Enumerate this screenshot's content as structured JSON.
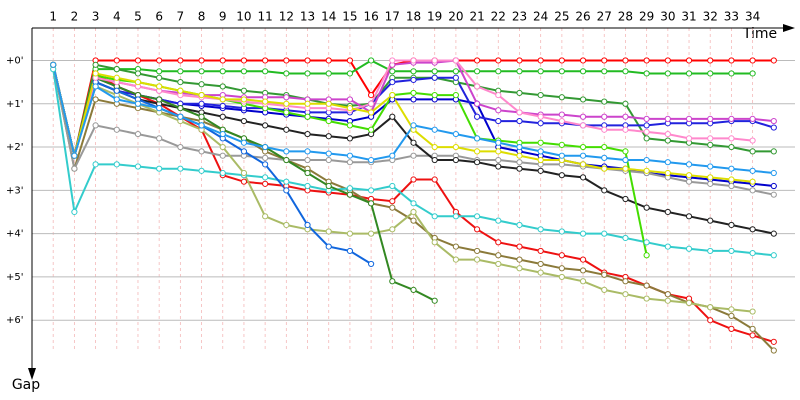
{
  "chart_data": {
    "type": "line",
    "x_label": "Time",
    "y_label": "Gap",
    "x": [
      1,
      2,
      3,
      4,
      5,
      6,
      7,
      8,
      9,
      10,
      11,
      12,
      13,
      14,
      15,
      16,
      17,
      18,
      19,
      20,
      21,
      22,
      23,
      24,
      25,
      26,
      27,
      28,
      29,
      30,
      31,
      32,
      33,
      34,
      35
    ],
    "xlim": [
      0,
      36
    ],
    "xticks": [
      1,
      2,
      3,
      4,
      5,
      6,
      7,
      8,
      9,
      10,
      11,
      12,
      13,
      14,
      15,
      16,
      17,
      18,
      19,
      20,
      21,
      22,
      23,
      24,
      25,
      26,
      27,
      28,
      29,
      30,
      31,
      32,
      33,
      34
    ],
    "ylim": [
      -0.75,
      7.15
    ],
    "yticks": [
      {
        "value": 0,
        "label": "+0'"
      },
      {
        "value": 1,
        "label": "+1'"
      },
      {
        "value": 2,
        "label": "+2'"
      },
      {
        "value": 3,
        "label": "+3'"
      },
      {
        "value": 4,
        "label": "+4'"
      },
      {
        "value": 5,
        "label": "+5'"
      },
      {
        "value": 6,
        "label": "+6'"
      }
    ],
    "grid": true,
    "series": [
      {
        "color": "#ff0000",
        "values": [
          0.1,
          2.2,
          0,
          0,
          0,
          0,
          0,
          0,
          0,
          0,
          0,
          0,
          0,
          0,
          0,
          0.8,
          0.1,
          0,
          0,
          0,
          0,
          0,
          0,
          0,
          0,
          0,
          0,
          0,
          0,
          0,
          0,
          0,
          0,
          0,
          0
        ]
      },
      {
        "color": "#22bb22",
        "values": [
          0.1,
          2.2,
          0.2,
          0.2,
          0.2,
          0.25,
          0.25,
          0.25,
          0.25,
          0.25,
          0.25,
          0.3,
          0.3,
          0.3,
          0.3,
          0,
          0.25,
          0.25,
          0.25,
          0.25,
          0.25,
          0.25,
          0.25,
          0.25,
          0.25,
          0.25,
          0.25,
          0.25,
          0.3,
          0.3,
          0.3,
          0.3,
          0.3,
          0.3,
          null
        ]
      },
      {
        "color": "#339933",
        "values": [
          0.1,
          2.2,
          0.1,
          0.2,
          0.3,
          0.4,
          0.5,
          0.55,
          0.6,
          0.7,
          0.75,
          0.8,
          0.9,
          1.0,
          1.05,
          1.0,
          0.4,
          0.4,
          0.4,
          0.5,
          0.6,
          0.7,
          0.75,
          0.8,
          0.85,
          0.9,
          0.95,
          1.0,
          1.8,
          1.85,
          1.9,
          1.95,
          2.0,
          2.1,
          2.1
        ]
      },
      {
        "color": "#0000cc",
        "values": [
          0.1,
          2.2,
          0.4,
          0.6,
          0.8,
          0.9,
          1.0,
          1.05,
          1.1,
          1.15,
          1.2,
          1.25,
          1.3,
          1.35,
          1.4,
          1.3,
          0.9,
          0.9,
          0.9,
          0.9,
          1.0,
          2.0,
          2.1,
          2.2,
          2.3,
          2.4,
          2.45,
          2.5,
          2.6,
          2.65,
          2.7,
          2.75,
          2.8,
          2.85,
          2.9
        ]
      },
      {
        "color": "#2222dd",
        "values": [
          0.1,
          2.2,
          0.5,
          0.7,
          0.8,
          0.9,
          1.0,
          1.0,
          1.05,
          1.1,
          1.1,
          1.15,
          1.2,
          1.2,
          1.2,
          1.0,
          0.5,
          0.45,
          0.4,
          0.4,
          1.3,
          1.4,
          1.4,
          1.45,
          1.45,
          1.5,
          1.5,
          1.5,
          1.5,
          1.45,
          1.45,
          1.45,
          1.4,
          1.4,
          1.55
        ]
      },
      {
        "color": "#cc44cc",
        "values": [
          0.1,
          2.2,
          0.4,
          0.5,
          0.6,
          0.7,
          0.75,
          0.8,
          0.8,
          0.85,
          0.85,
          0.85,
          0.9,
          0.9,
          0.9,
          1.2,
          0.1,
          0.05,
          0.05,
          0,
          1.0,
          1.15,
          1.2,
          1.25,
          1.25,
          1.3,
          1.3,
          1.3,
          1.35,
          1.35,
          1.35,
          1.35,
          1.35,
          1.35,
          1.4
        ]
      },
      {
        "color": "#ee1111",
        "values": [
          0.1,
          2.2,
          0.3,
          0.6,
          0.8,
          1.0,
          1.3,
          1.6,
          2.65,
          2.8,
          2.85,
          2.9,
          3.0,
          3.05,
          3.1,
          3.2,
          3.25,
          2.75,
          2.75,
          3.5,
          3.9,
          4.2,
          4.3,
          4.4,
          4.5,
          4.6,
          4.9,
          5.0,
          5.2,
          5.4,
          5.5,
          6.0,
          6.2,
          6.35,
          6.5
        ]
      },
      {
        "color": "#8b7a3a",
        "values": [
          0.1,
          2.5,
          0.9,
          1.0,
          1.1,
          1.2,
          1.3,
          1.4,
          1.6,
          1.8,
          2.1,
          2.3,
          2.5,
          2.8,
          3.0,
          3.3,
          3.4,
          3.7,
          4.1,
          4.3,
          4.4,
          4.5,
          4.6,
          4.7,
          4.8,
          4.85,
          4.95,
          5.1,
          5.2,
          5.4,
          5.6,
          5.7,
          5.9,
          6.2,
          6.7
        ]
      },
      {
        "color": "#33cccc",
        "values": [
          0.2,
          3.5,
          2.4,
          2.4,
          2.45,
          2.5,
          2.5,
          2.55,
          2.6,
          2.65,
          2.7,
          2.8,
          2.9,
          3.0,
          2.95,
          3.0,
          2.9,
          3.3,
          3.6,
          3.6,
          3.6,
          3.7,
          3.8,
          3.9,
          3.95,
          4.0,
          4.0,
          4.1,
          4.2,
          4.3,
          4.35,
          4.4,
          4.4,
          4.45,
          4.5
        ]
      },
      {
        "color": "#999999",
        "values": [
          0.1,
          2.5,
          1.5,
          1.6,
          1.7,
          1.8,
          2.0,
          2.1,
          2.2,
          2.2,
          2.25,
          2.3,
          2.3,
          2.3,
          2.35,
          2.35,
          2.3,
          2.2,
          2.2,
          2.2,
          2.3,
          2.3,
          2.35,
          2.4,
          2.4,
          2.45,
          2.5,
          2.55,
          2.6,
          2.7,
          2.8,
          2.85,
          2.9,
          3.0,
          3.1
        ]
      },
      {
        "color": "#222222",
        "values": [
          0.1,
          2.2,
          0.5,
          0.7,
          0.9,
          1.0,
          1.1,
          1.2,
          1.3,
          1.4,
          1.5,
          1.6,
          1.7,
          1.75,
          1.8,
          1.7,
          1.3,
          1.9,
          2.3,
          2.3,
          2.35,
          2.45,
          2.5,
          2.55,
          2.65,
          2.7,
          3.0,
          3.2,
          3.4,
          3.5,
          3.6,
          3.7,
          3.8,
          3.9,
          4.0
        ]
      },
      {
        "color": "#44dd00",
        "values": [
          0.1,
          2.2,
          0.35,
          0.45,
          0.5,
          0.6,
          0.7,
          0.8,
          0.9,
          1.0,
          1.1,
          1.2,
          1.3,
          1.4,
          1.5,
          1.6,
          0.8,
          0.75,
          0.8,
          0.8,
          1.8,
          1.85,
          1.9,
          1.9,
          1.95,
          2.0,
          2.0,
          2.1,
          4.5,
          null,
          null,
          null,
          null,
          null,
          null
        ]
      },
      {
        "color": "#aabb66",
        "values": [
          0.1,
          2.2,
          0.6,
          0.8,
          1.0,
          1.2,
          1.4,
          1.6,
          2.0,
          2.6,
          3.6,
          3.8,
          3.9,
          3.95,
          4.0,
          4.0,
          3.9,
          3.5,
          4.2,
          4.6,
          4.6,
          4.7,
          4.8,
          4.9,
          5.0,
          5.1,
          5.3,
          5.4,
          5.5,
          5.55,
          5.6,
          5.7,
          5.75,
          5.8,
          null
        ]
      },
      {
        "color": "#338822",
        "values": [
          0.1,
          2.2,
          0.4,
          0.6,
          0.8,
          0.9,
          1.1,
          1.3,
          1.6,
          1.8,
          2.0,
          2.3,
          2.6,
          2.9,
          3.1,
          3.3,
          5.1,
          5.3,
          5.55,
          null,
          null,
          null,
          null,
          null,
          null,
          null,
          null,
          null,
          null,
          null,
          null,
          null,
          null,
          null,
          null
        ]
      },
      {
        "color": "#1166dd",
        "values": [
          0.1,
          2.2,
          0.5,
          0.7,
          0.9,
          1.1,
          1.3,
          1.5,
          1.8,
          2.1,
          2.4,
          3.0,
          3.8,
          4.3,
          4.4,
          4.7,
          null,
          null,
          null,
          null,
          null,
          null,
          null,
          null,
          null,
          null,
          null,
          null,
          null,
          null,
          null,
          null,
          null,
          null,
          null
        ]
      },
      {
        "color": "#ff88cc",
        "values": [
          0.1,
          2.2,
          0.4,
          0.5,
          0.6,
          0.7,
          0.8,
          0.85,
          0.9,
          0.95,
          1.0,
          1.05,
          1.1,
          1.1,
          1.15,
          1.0,
          0.0,
          0.0,
          0.0,
          0.0,
          0.6,
          0.8,
          1.2,
          1.3,
          1.4,
          1.5,
          1.6,
          1.6,
          1.65,
          1.7,
          1.8,
          1.8,
          1.8,
          1.85,
          null
        ]
      },
      {
        "color": "#dddd00",
        "values": [
          0.1,
          2.2,
          0.3,
          0.4,
          0.5,
          0.6,
          0.7,
          0.8,
          0.9,
          0.9,
          0.95,
          1.0,
          1.0,
          1.0,
          1.1,
          1.2,
          0.8,
          1.6,
          2.0,
          2.0,
          2.1,
          2.1,
          2.2,
          2.3,
          2.3,
          2.4,
          2.5,
          2.5,
          2.55,
          2.6,
          2.65,
          2.7,
          2.75,
          2.8,
          null
        ]
      },
      {
        "color": "#2299ee",
        "values": [
          0.1,
          2.2,
          0.6,
          0.9,
          1.0,
          1.1,
          1.3,
          1.5,
          1.7,
          1.9,
          2.0,
          2.1,
          2.1,
          2.15,
          2.2,
          2.3,
          2.2,
          1.5,
          1.6,
          1.7,
          1.8,
          1.9,
          2.0,
          2.1,
          2.2,
          2.2,
          2.25,
          2.3,
          2.3,
          2.35,
          2.4,
          2.45,
          2.5,
          2.55,
          2.6
        ]
      }
    ]
  }
}
